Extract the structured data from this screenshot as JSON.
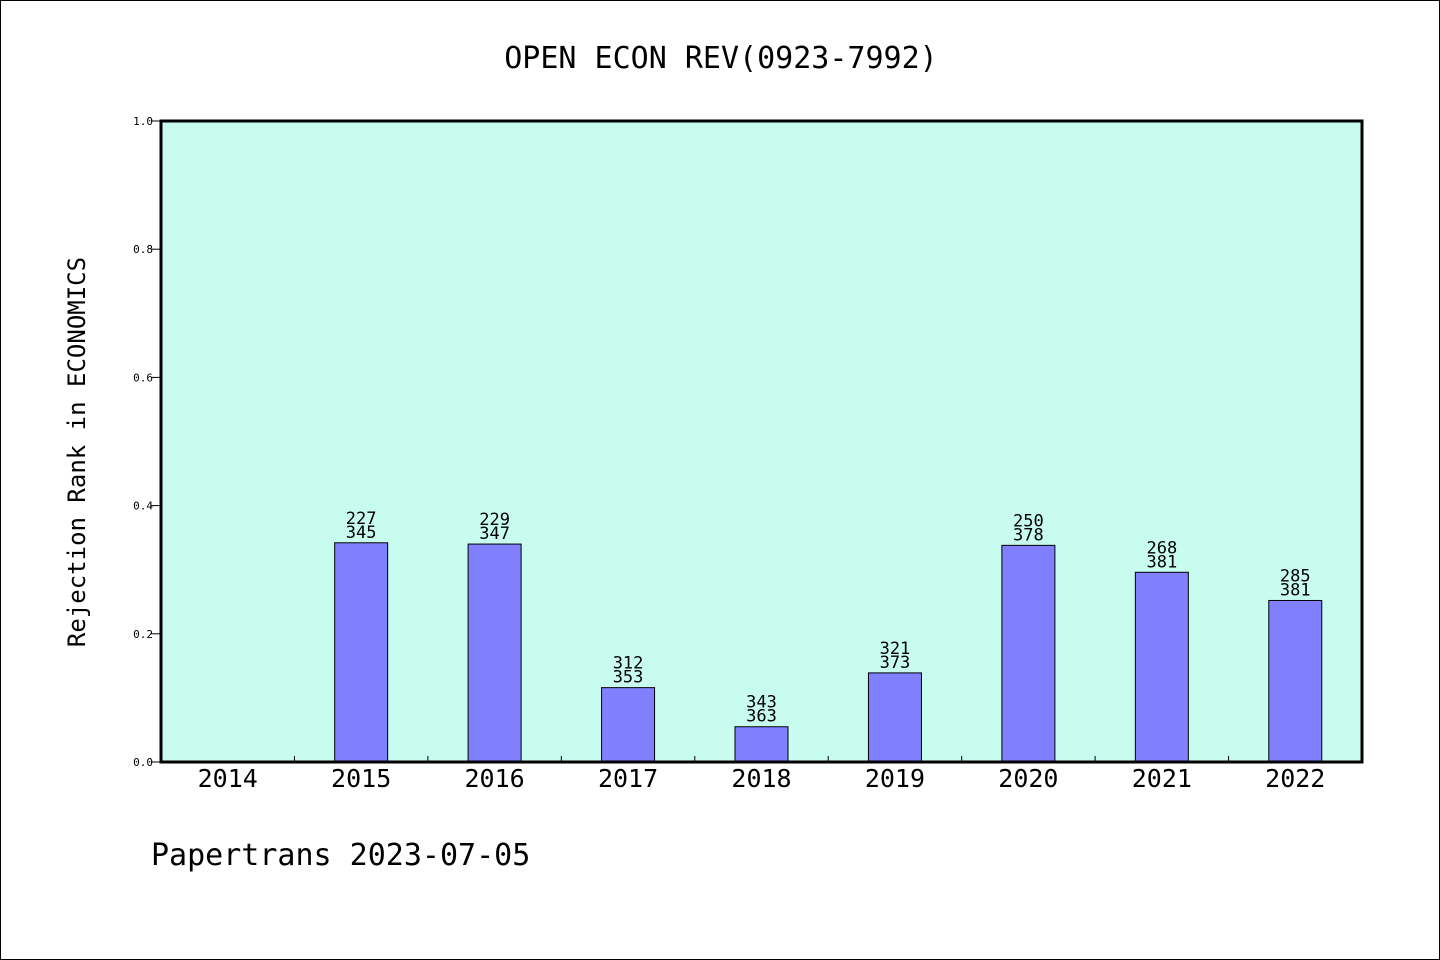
{
  "colors": {
    "background": "#ffffff",
    "plot_background": "#c8fcee",
    "bar_fill": "#8080ff",
    "bar_stroke": "#000000",
    "axis": "#000000",
    "text": "#000000"
  },
  "footer": {
    "text": "Papertrans 2023-07-05"
  },
  "chart_data": {
    "type": "bar",
    "title": "OPEN ECON REV(0923-7992)",
    "xlabel": "",
    "ylabel": "Rejection Rank in ECONOMICS",
    "ylim": [
      0,
      1.0
    ],
    "yticks": [
      "0.0",
      "0.2",
      "0.4",
      "0.6",
      "0.8",
      "1.0"
    ],
    "grid": false,
    "legend": "none",
    "categories": [
      "2014",
      "2015",
      "2016",
      "2017",
      "2018",
      "2019",
      "2020",
      "2021",
      "2022"
    ],
    "values": [
      null,
      0.342,
      0.34,
      0.116,
      0.055,
      0.139,
      0.338,
      0.296,
      0.252
    ],
    "labels_top": [
      "",
      "227",
      "229",
      "312",
      "343",
      "321",
      "250",
      "268",
      "285"
    ],
    "labels_bottom": [
      "",
      "345",
      "347",
      "353",
      "363",
      "373",
      "378",
      "381",
      "381"
    ]
  }
}
